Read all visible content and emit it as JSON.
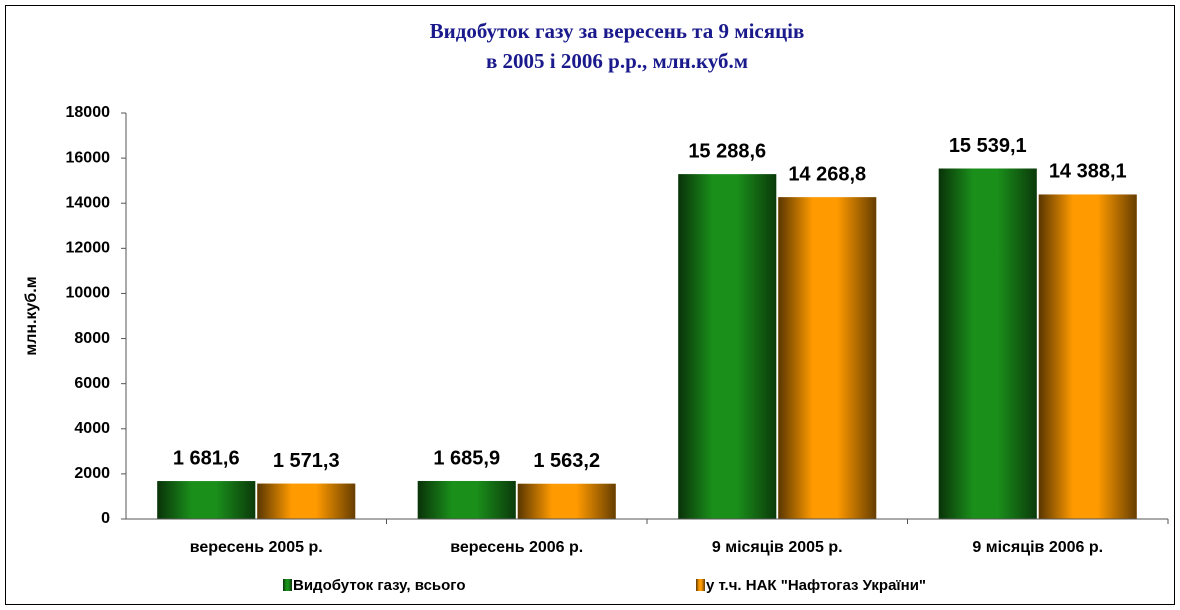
{
  "chart_data": {
    "type": "bar",
    "title": [
      "Видобуток газу за вересень та 9 місяців",
      "в 2005 і 2006 р.р.,  млн.куб.м"
    ],
    "y_label": "млн.куб.м",
    "categories": [
      "вересень 2005 р.",
      "вересень 2006 р.",
      "9 місяців 2005 р.",
      "9 місяців  2006 р."
    ],
    "series": [
      {
        "name": "Видобуток газу, всього",
        "color": "#1a8f1a",
        "values": [
          1681.6,
          1685.9,
          15288.6,
          15539.1
        ],
        "value_labels": [
          "1 681,6",
          "1 685,9",
          "15 288,6",
          "15 539,1"
        ]
      },
      {
        "name": "у т.ч. НАК \"Нафтогаз України\"",
        "color": "#ff9a00",
        "values": [
          1571.3,
          1563.2,
          14268.8,
          14388.1
        ],
        "value_labels": [
          "1 571,3",
          "1 563,2",
          "14 268,8",
          "14 388,1"
        ]
      }
    ],
    "ylim": [
      0,
      18000
    ],
    "yticks": [
      0,
      2000,
      4000,
      6000,
      8000,
      10000,
      12000,
      14000,
      16000,
      18000
    ],
    "legend": "bottom"
  }
}
